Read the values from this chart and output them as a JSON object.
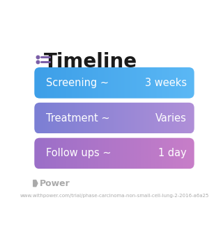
{
  "title": "Timeline",
  "title_fontsize": 20,
  "title_color": "#1a1a1a",
  "icon_color": "#7B5EA7",
  "background_color": "#ffffff",
  "rows": [
    {
      "label": "Screening ~",
      "value": "3 weeks",
      "color_left": "#3D9FE8",
      "color_right": "#5BB8F5"
    },
    {
      "label": "Treatment ~",
      "value": "Varies",
      "color_left": "#7B7FD4",
      "color_right": "#B08FD8"
    },
    {
      "label": "Follow ups ~",
      "value": "1 day",
      "color_left": "#9B6FC8",
      "color_right": "#C87EC8"
    }
  ],
  "label_fontsize": 10.5,
  "value_fontsize": 10.5,
  "footer_text": "Power",
  "footer_url": "www.withpower.com/trial/phase-carcinoma-non-small-cell-lung-2-2016-a6a25",
  "footer_color": "#aaaaaa",
  "footer_fontsize": 5.0
}
